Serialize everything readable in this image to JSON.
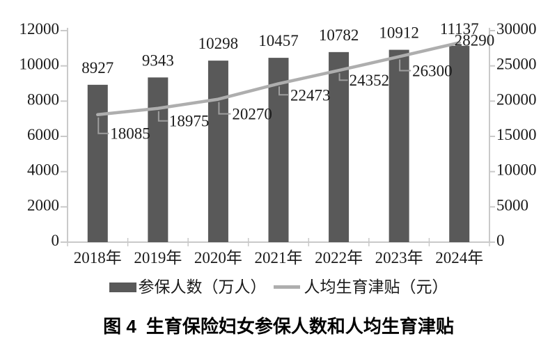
{
  "figure": {
    "caption_label": "图 4",
    "caption_title": "生育保险妇女参保人数和人均生育津贴"
  },
  "legend": {
    "bar_label": "参保人数（万人）",
    "line_label": "人均生育津贴（元）"
  },
  "colors": {
    "bar": "#595959",
    "line": "#aeaeae",
    "connector": "#9e9e9e",
    "axis": "#c9c9c9",
    "text": "#1a1a1a"
  },
  "chart_data": {
    "type": "bar",
    "subtype": "combo bar+line, dual axis",
    "title": "图 4 生育保险妇女参保人数和人均生育津贴",
    "categories": [
      "2018年",
      "2019年",
      "2020年",
      "2021年",
      "2022年",
      "2023年",
      "2024年"
    ],
    "series": [
      {
        "name": "参保人数（万人）",
        "type": "bar",
        "axis": "left",
        "values": [
          8927,
          9343,
          10298,
          10457,
          10782,
          10912,
          11137
        ]
      },
      {
        "name": "人均生育津贴（元）",
        "type": "line",
        "axis": "right",
        "values": [
          18085,
          18975,
          20270,
          22473,
          24352,
          26300,
          28290
        ]
      }
    ],
    "left_axis": {
      "min": 0,
      "max": 12000,
      "step": 2000,
      "ticks": [
        0,
        2000,
        4000,
        6000,
        8000,
        10000,
        12000
      ]
    },
    "right_axis": {
      "min": 0,
      "max": 30000,
      "step": 5000,
      "ticks": [
        0,
        5000,
        10000,
        15000,
        20000,
        25000,
        30000
      ]
    },
    "grid": false,
    "data_labels": true,
    "legend_position": "bottom"
  }
}
